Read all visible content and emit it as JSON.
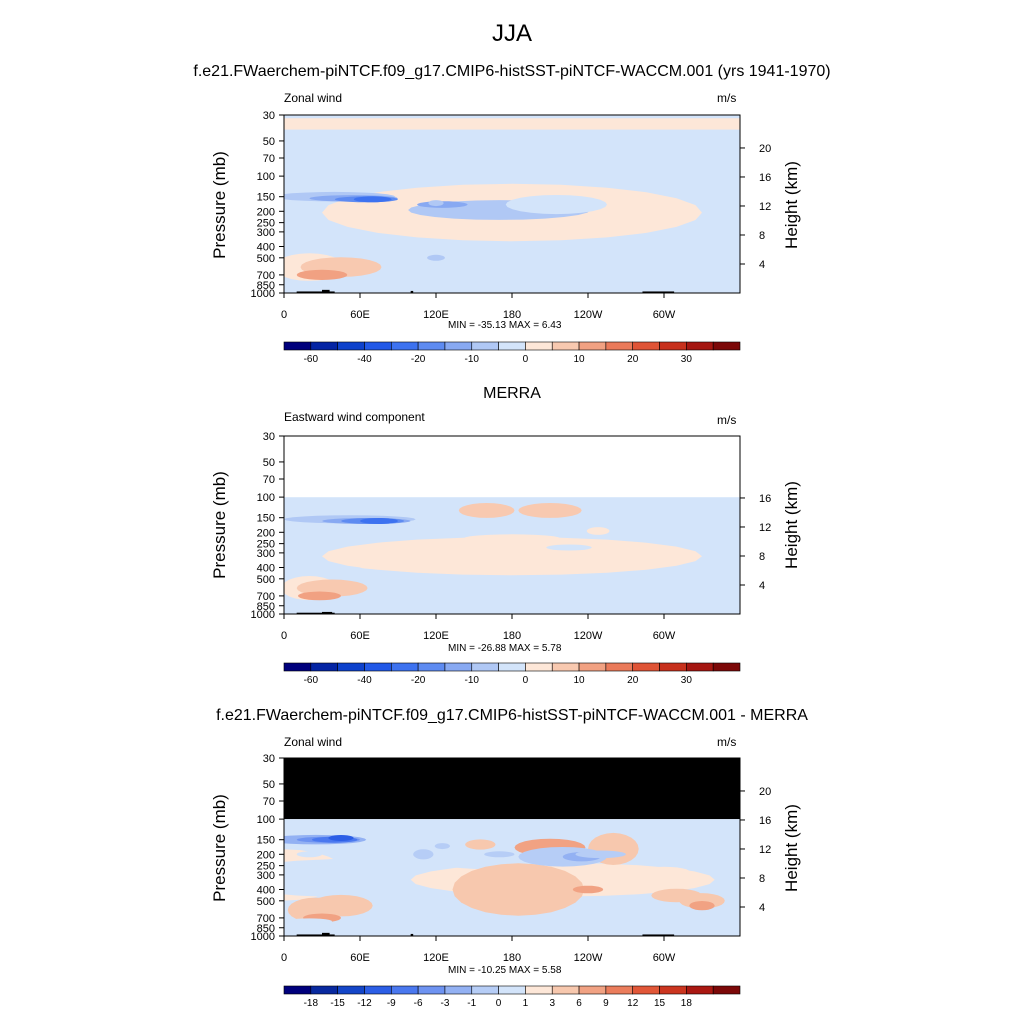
{
  "chart_data": {
    "type": "contour",
    "title": "JJA",
    "x_tick_labels": [
      "0",
      "60E",
      "120E",
      "180",
      "120W",
      "60W"
    ],
    "pressure_ticks": [
      "30",
      "50",
      "70",
      "100",
      "150",
      "200",
      "250",
      "300",
      "400",
      "500",
      "700",
      "850",
      "1000"
    ],
    "panels": [
      {
        "title": "f.e21.FWaerchem-piNTCF.f09_g17.CMIP6-histSST-piNTCF-WACCM.001 (yrs 1941-1970)",
        "left_label": "Zonal wind",
        "units": "m/s",
        "ylabel": "Pressure (mb)",
        "ylabel_right": "Height (km)",
        "height_ticks": [
          "4",
          "8",
          "12",
          "16",
          "20"
        ],
        "min_max_text": "MIN = -35.13  MAX =   6.43",
        "colorbar_labels": [
          "-60",
          "-40",
          "-20",
          "-10",
          "0",
          "10",
          "20",
          "30"
        ],
        "ptop": 30
      },
      {
        "title": "MERRA",
        "left_label": "Eastward wind component",
        "units": "m/s",
        "ylabel": "Pressure (mb)",
        "ylabel_right": "Height (km)",
        "height_ticks": [
          "4",
          "8",
          "12",
          "16"
        ],
        "min_max_text": "MIN = -26.88  MAX =   5.78",
        "colorbar_labels": [
          "-60",
          "-40",
          "-20",
          "-10",
          "0",
          "10",
          "20",
          "30"
        ],
        "ptop": 100
      },
      {
        "title": "f.e21.FWaerchem-piNTCF.f09_g17.CMIP6-histSST-piNTCF-WACCM.001 - MERRA",
        "left_label": "Zonal wind",
        "units": "m/s",
        "ylabel": "Pressure (mb)",
        "ylabel_right": "Height (km)",
        "height_ticks": [
          "4",
          "8",
          "12",
          "16",
          "20"
        ],
        "min_max_text": "MIN = -10.25  MAX =   5.58",
        "colorbar_labels": [
          "-18",
          "-15",
          "-12",
          "-9",
          "-6",
          "-3",
          "-1",
          "0",
          "1",
          "3",
          "6",
          "9",
          "12",
          "15",
          "18"
        ],
        "ptop": 100
      }
    ]
  },
  "colors": {
    "abs_scale": [
      "#00007c",
      "#0424a4",
      "#0d41cc",
      "#2158e7",
      "#3d72f0",
      "#5e8bf1",
      "#88a9f2",
      "#b0c8f5",
      "#d3e4fa",
      "#fde7d8",
      "#f8c9b0",
      "#f1a182",
      "#ea7a5a",
      "#df5436",
      "#c7301c",
      "#a51611",
      "#7c0808"
    ],
    "diff_scale": [
      "#00007c",
      "#08299f",
      "#1446c8",
      "#2c5ee6",
      "#4a78ef",
      "#6e93f1",
      "#93b1f3",
      "#b6cdf6",
      "#d3e4fa",
      "#fde7d8",
      "#f7c8ae",
      "#f1a283",
      "#eb7d5c",
      "#e15738",
      "#cb351f",
      "#aa1812",
      "#7c0808"
    ]
  }
}
